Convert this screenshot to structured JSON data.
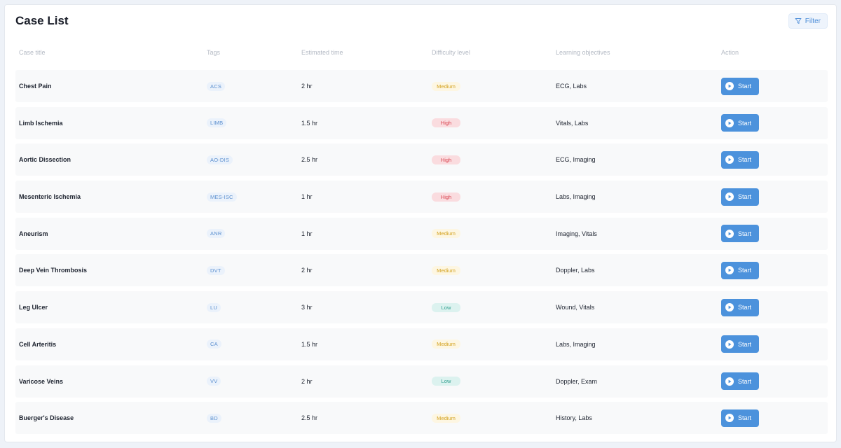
{
  "header": {
    "title": "Case List",
    "filter_label": "Filter"
  },
  "columns": [
    "Case title",
    "Tags",
    "Estimated time",
    "Difficulty level",
    "Learning objectives",
    "Action"
  ],
  "rows": [
    {
      "title": "Chest Pain",
      "tag": "ACS",
      "time": "2 hr",
      "difficulty": "Medium",
      "level": "medium",
      "objectives": "ECG, Labs",
      "action": "Start"
    },
    {
      "title": "Limb Ischemia",
      "tag": "LIMB",
      "time": "1.5 hr",
      "difficulty": "High",
      "level": "high",
      "objectives": "Vitals, Labs",
      "action": "Start"
    },
    {
      "title": "Aortic Dissection",
      "tag": "AO-DIS",
      "time": "2.5 hr",
      "difficulty": "High",
      "level": "high",
      "objectives": "ECG, Imaging",
      "action": "Start"
    },
    {
      "title": "Mesenteric Ischemia",
      "tag": "MES-ISC",
      "time": "1 hr",
      "difficulty": "High",
      "level": "high",
      "objectives": "Labs, Imaging",
      "action": "Start"
    },
    {
      "title": "Aneurism",
      "tag": "ANR",
      "time": "1 hr",
      "difficulty": "Medium",
      "level": "medium",
      "objectives": "Imaging, Vitals",
      "action": "Start"
    },
    {
      "title": "Deep Vein Thrombosis",
      "tag": "DVT",
      "time": "2 hr",
      "difficulty": "Medium",
      "level": "medium",
      "objectives": "Doppler, Labs",
      "action": "Start"
    },
    {
      "title": "Leg Ulcer",
      "tag": "LU",
      "time": "3 hr",
      "difficulty": "Low",
      "level": "low",
      "objectives": "Wound, Vitals",
      "action": "Start"
    },
    {
      "title": "Cell Arteritis",
      "tag": "CA",
      "time": "1.5 hr",
      "difficulty": "Medium",
      "level": "medium",
      "objectives": "Labs, Imaging",
      "action": "Start"
    },
    {
      "title": "Varicose Veins",
      "tag": "VV",
      "time": "2 hr",
      "difficulty": "Low",
      "level": "low",
      "objectives": "Doppler, Exam",
      "action": "Start"
    },
    {
      "title": "Buerger's Disease",
      "tag": "BD",
      "time": "2.5 hr",
      "difficulty": "Medium",
      "level": "medium",
      "objectives": "History, Labs",
      "action": "Start"
    }
  ],
  "icons": {
    "filter": "filter-icon",
    "start": "play-circle-icon"
  },
  "colors": {
    "accent": "#4c92dc",
    "medium": "#d3a21f",
    "high": "#d9434f",
    "low": "#2f9f8e"
  }
}
